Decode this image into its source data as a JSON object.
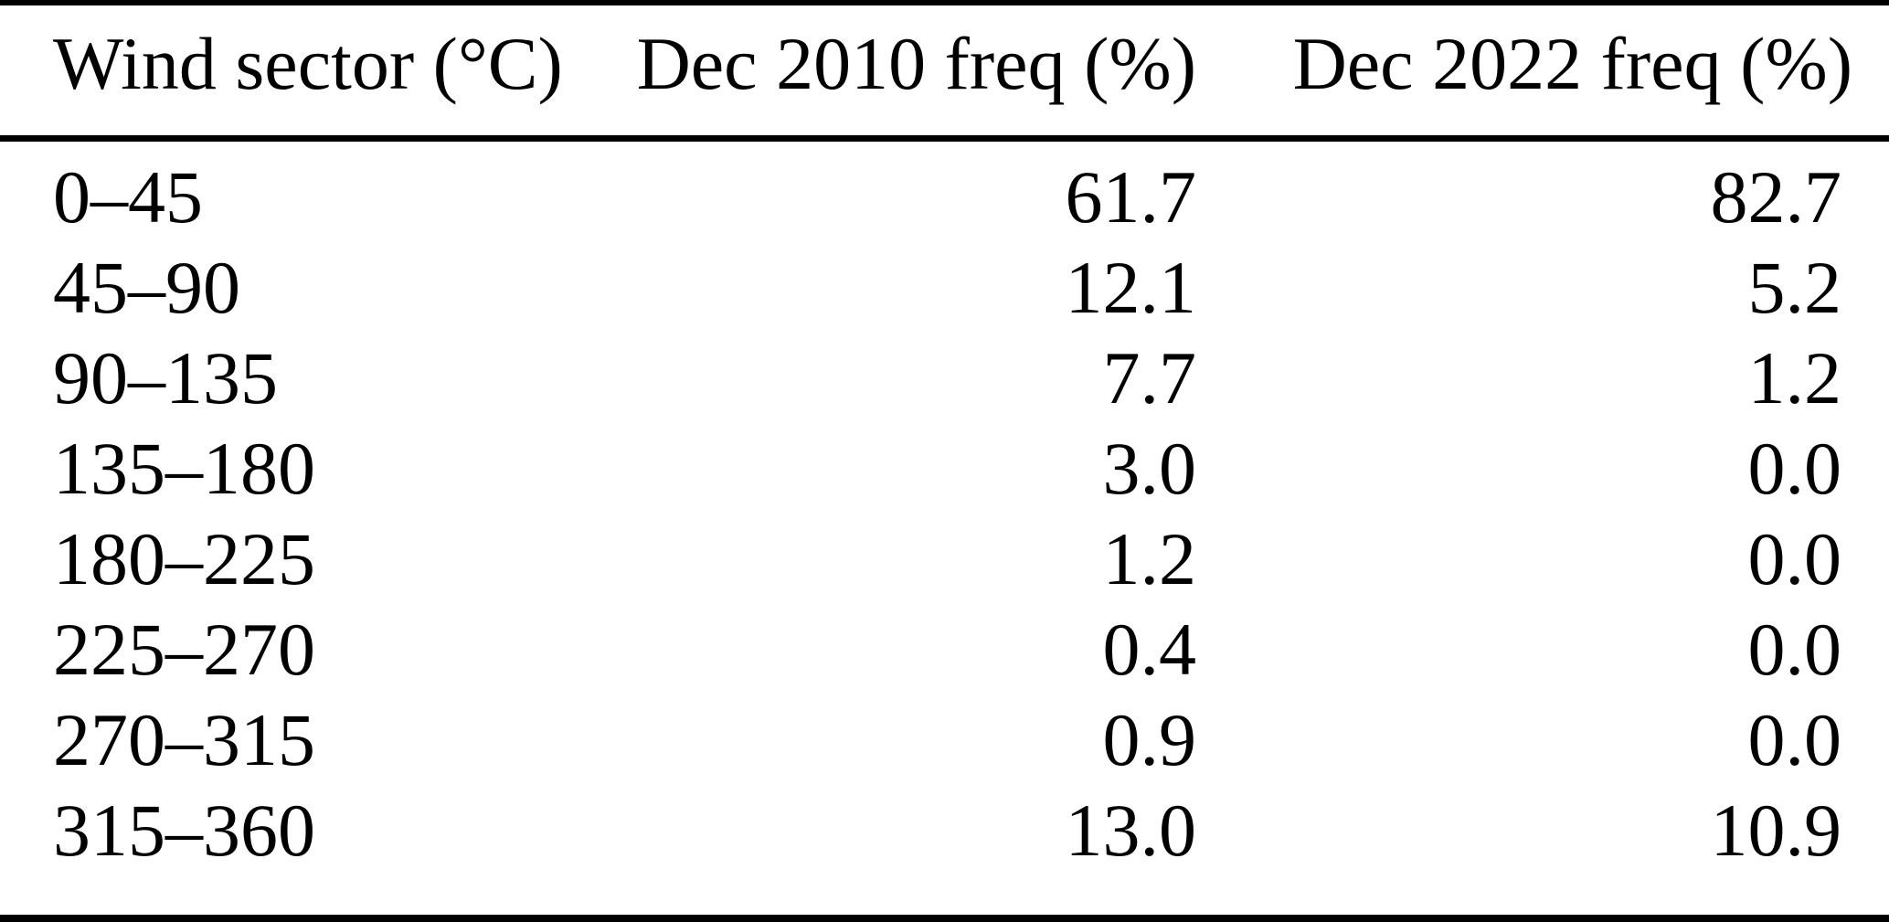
{
  "header": {
    "sector": "Wind sector (°C)",
    "freq2010": "Dec 2010 freq (%)",
    "freq2022": "Dec 2022 freq (%)"
  },
  "rows": [
    {
      "sector": "0–45",
      "freq2010": "61.7",
      "freq2022": "82.7"
    },
    {
      "sector": "45–90",
      "freq2010": "12.1",
      "freq2022": "5.2"
    },
    {
      "sector": "90–135",
      "freq2010": "7.7",
      "freq2022": "1.2"
    },
    {
      "sector": "135–180",
      "freq2010": "3.0",
      "freq2022": "0.0"
    },
    {
      "sector": "180–225",
      "freq2010": "1.2",
      "freq2022": "0.0"
    },
    {
      "sector": "225–270",
      "freq2010": "0.4",
      "freq2022": "0.0"
    },
    {
      "sector": "270–315",
      "freq2010": "0.9",
      "freq2022": "0.0"
    },
    {
      "sector": "315–360",
      "freq2010": "13.0",
      "freq2022": "10.9"
    }
  ],
  "chart_data": {
    "type": "table",
    "title": "",
    "columns": [
      "Wind sector (°C)",
      "Dec 2010 freq (%)",
      "Dec 2022 freq (%)"
    ],
    "categories": [
      "0–45",
      "45–90",
      "90–135",
      "135–180",
      "180–225",
      "225–270",
      "270–315",
      "315–360"
    ],
    "series": [
      {
        "name": "Dec 2010 freq (%)",
        "values": [
          61.7,
          12.1,
          7.7,
          3.0,
          1.2,
          0.4,
          0.9,
          13.0
        ]
      },
      {
        "name": "Dec 2022 freq (%)",
        "values": [
          82.7,
          5.2,
          1.2,
          0.0,
          0.0,
          0.0,
          0.0,
          10.9
        ]
      }
    ]
  }
}
